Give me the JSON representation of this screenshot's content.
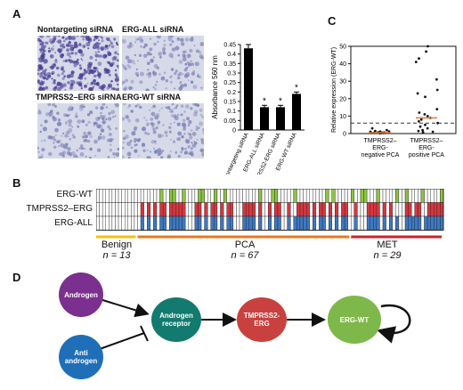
{
  "panel_labels": {
    "a": "A",
    "b": "B",
    "c": "C",
    "d": "D"
  },
  "micrographs": [
    {
      "label": "Nontargeting siRNA",
      "density": 1.0
    },
    {
      "label": "ERG-ALL siRNA",
      "density": 0.35
    },
    {
      "label": "TMPRSS2–ERG siRNA",
      "density": 0.4
    },
    {
      "label": "ERG-WT siRNA",
      "density": 0.45
    }
  ],
  "chart_data": [
    {
      "type": "bar",
      "categories": [
        "Nontargeting siRNA",
        "ERG-ALL siRNA",
        "TMPRSS2-ERG siRNA",
        "ERG-WT siRNA"
      ],
      "values": [
        0.43,
        0.12,
        0.12,
        0.19
      ],
      "errors": [
        0.02,
        0.01,
        0.01,
        0.01
      ],
      "significant": [
        false,
        true,
        true,
        true
      ],
      "significance_marker": "*",
      "ylabel": "Absorbance 560 nm",
      "yticks": [
        "0",
        "0.05",
        "0.1",
        "0.15",
        "0.2",
        "0.25",
        "0.3",
        "0.35",
        "0.4",
        "0.45"
      ],
      "ylim": [
        0,
        0.45
      ]
    },
    {
      "type": "scatter",
      "ylabel": "Relative expression (ERG-WT)",
      "yticks": [
        "0",
        "10",
        "20",
        "30",
        "40",
        "50"
      ],
      "ylim": [
        0,
        50
      ],
      "categories": [
        "TMPRSS2–ERG-negative PCA",
        "TMPRSS2–ERG-positive PCA"
      ],
      "threshold": 6,
      "medians": [
        0.5,
        9
      ],
      "groups": [
        {
          "values": [
            0.2,
            0.3,
            0.4,
            0.5,
            0.6,
            0.8,
            1.0,
            1.2,
            0.5,
            0.7,
            1.5,
            2.0,
            0.3,
            0.9,
            1.1,
            0.4,
            0.6,
            3.0
          ]
        },
        {
          "values": [
            50,
            47,
            43,
            41,
            31,
            25,
            23,
            21,
            14,
            12,
            11,
            10,
            9,
            8,
            7,
            6,
            5,
            4,
            3,
            2,
            1.5,
            1,
            0.8,
            0.5
          ]
        }
      ]
    },
    {
      "type": "heatmap",
      "rows": [
        "ERG-WT",
        "TMPRSS2–ERG",
        "ERG-ALL"
      ],
      "n_columns": 109,
      "groups": [
        {
          "name": "Benign",
          "n_label": "n = 13",
          "count": 13,
          "color": "#f2c20f"
        },
        {
          "name": "PCA",
          "n_label": "n = 67",
          "count": 67,
          "color": "#e8791f"
        },
        {
          "name": "MET",
          "n_label": "n = 29",
          "count": 29,
          "color": "#c8262b"
        }
      ],
      "row_colors": {
        "ERG-WT": "#8cc63f",
        "TMPRSS2–ERG": "#d9363e",
        "ERG-ALL": "#3c79c4"
      }
    }
  ],
  "pathway": {
    "nodes": [
      {
        "id": "androgen",
        "label": "Androgen",
        "color": "#7b2f8e"
      },
      {
        "id": "anti",
        "label": "Anti androgen",
        "color": "#1f6fb8"
      },
      {
        "id": "ar",
        "label": "Androgen receptor",
        "color": "#127a6e"
      },
      {
        "id": "tmprss2",
        "label": "TMPRSS2-ERG",
        "color": "#c9413e"
      },
      {
        "id": "ergwt",
        "label": "ERG-WT",
        "color": "#7fb84a"
      }
    ]
  }
}
